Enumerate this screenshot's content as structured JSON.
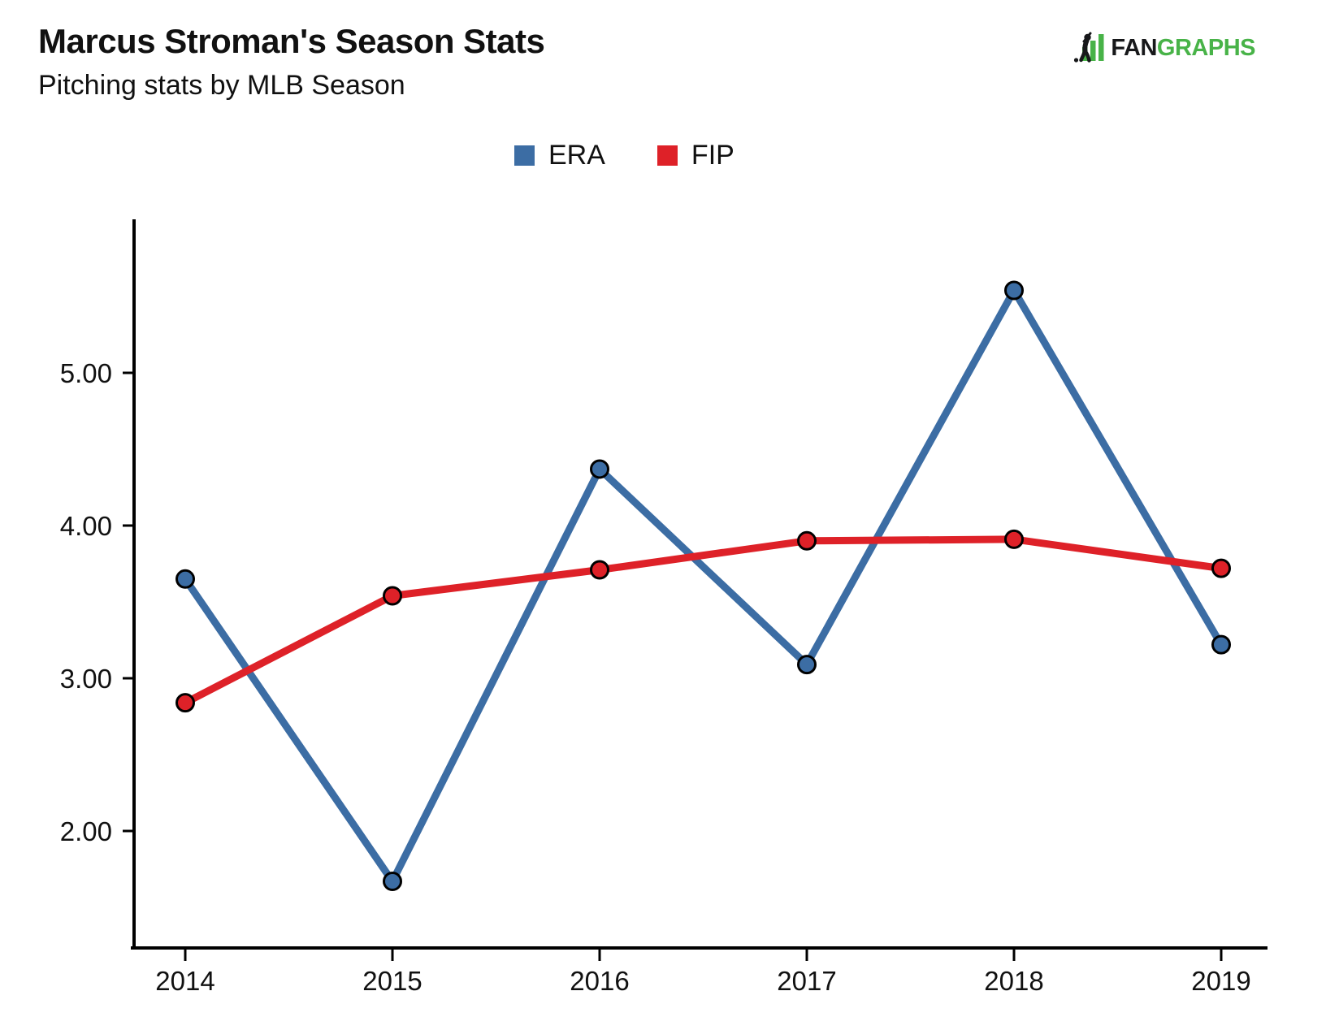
{
  "header": {
    "title": "Marcus Stroman's Season Stats",
    "subtitle": "Pitching stats by MLB Season"
  },
  "logo": {
    "brand_black": "FAN",
    "brand_green": "GRAPHS",
    "green": "#48B348",
    "black": "#17181a",
    "icon": "fangraphs-batter-icon"
  },
  "chart_data": {
    "type": "line",
    "title": "Marcus Stroman's Season Stats",
    "subtitle": "Pitching stats by MLB Season",
    "categories": [
      "2014",
      "2015",
      "2016",
      "2017",
      "2018",
      "2019"
    ],
    "series": [
      {
        "name": "ERA",
        "color": "#3C6DA4",
        "values": [
          3.65,
          1.67,
          4.37,
          3.09,
          5.54,
          3.22
        ]
      },
      {
        "name": "FIP",
        "color": "#DE2128",
        "values": [
          2.84,
          3.54,
          3.71,
          3.9,
          3.91,
          3.72
        ]
      }
    ],
    "xlabel": "",
    "ylabel": "",
    "y_ticks": [
      2.0,
      3.0,
      4.0,
      5.0
    ],
    "y_tick_labels": [
      "2.00",
      "3.00",
      "4.00",
      "5.00"
    ],
    "ylim": [
      1.3,
      6.0
    ],
    "grid": false,
    "legend_position": "top-center",
    "background": "#ffffff",
    "axis_color": "#000000",
    "point_outline": "#000000"
  }
}
